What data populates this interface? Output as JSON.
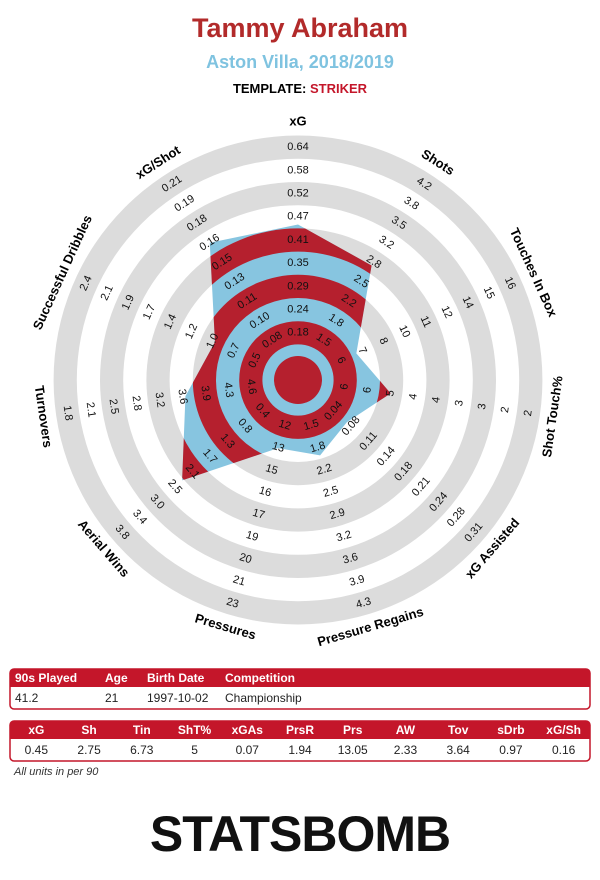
{
  "chart_data": {
    "type": "radar",
    "title": "Tammy Abraham",
    "subtitle": "Aston Villa, 2018/2019",
    "template_label": "TEMPLATE:",
    "template": "STRIKER",
    "categories": [
      "xG",
      "Shots",
      "Touches In Box",
      "Shot Touch%",
      "xG Assisted",
      "Pressure Regains",
      "Pressures",
      "Aerial Wins",
      "Turnovers",
      "Successful Dribbles",
      "xG/Shot"
    ],
    "ticks": [
      [
        0.18,
        0.24,
        0.29,
        0.35,
        0.41,
        0.47,
        0.52,
        0.58,
        0.64
      ],
      [
        1.5,
        1.8,
        2.2,
        2.5,
        2.8,
        3.2,
        3.5,
        3.8,
        4.2
      ],
      [
        6,
        7,
        8,
        10,
        11,
        12,
        14,
        15,
        16
      ],
      [
        6,
        6,
        5,
        4,
        4,
        3,
        3,
        2,
        2
      ],
      [
        0.04,
        0.08,
        0.11,
        0.14,
        0.18,
        0.21,
        0.24,
        0.28,
        0.31
      ],
      [
        1.5,
        1.8,
        2.2,
        2.5,
        2.9,
        3.2,
        3.6,
        3.9,
        4.3
      ],
      [
        12,
        13,
        15,
        16,
        17,
        19,
        20,
        21,
        23
      ],
      [
        0.4,
        0.8,
        1.3,
        1.7,
        2.1,
        2.5,
        {
          "value": 3.0,
          "label": "3.0"
        },
        3.4,
        3.8
      ],
      [
        4.6,
        4.3,
        3.9,
        3.6,
        3.2,
        2.8,
        2.5,
        2.1,
        1.8
      ],
      [
        0.5,
        0.7,
        {
          "value": 1.0,
          "label": "1.0"
        },
        1.2,
        1.4,
        1.7,
        1.9,
        2.1,
        2.4
      ],
      [
        0.08,
        {
          "value": 0.1,
          "label": "0.10"
        },
        0.11,
        0.13,
        0.15,
        0.16,
        0.18,
        0.19,
        0.21
      ]
    ],
    "series": [
      {
        "name": "Tammy Abraham",
        "color": "#87c5e0",
        "ring_color": "#b5202e",
        "values": [
          0.45,
          2.75,
          6.73,
          5,
          0.07,
          1.94,
          13.05,
          2.33,
          3.64,
          0.97,
          0.16
        ]
      }
    ]
  },
  "info_table": {
    "headers": [
      "90s Played",
      "Age",
      "Birth Date",
      "Competition"
    ],
    "row": [
      41.2,
      21,
      "1997-10-02",
      "Championship"
    ]
  },
  "stats_table": {
    "headers": [
      "xG",
      "Sh",
      "Tin",
      "ShT%",
      "xGAs",
      "PrsR",
      "Prs",
      "AW",
      "Tov",
      "sDrb",
      "xG/Sh"
    ]
  },
  "footnote": "All units in per 90",
  "logo": "STATSBOMB"
}
